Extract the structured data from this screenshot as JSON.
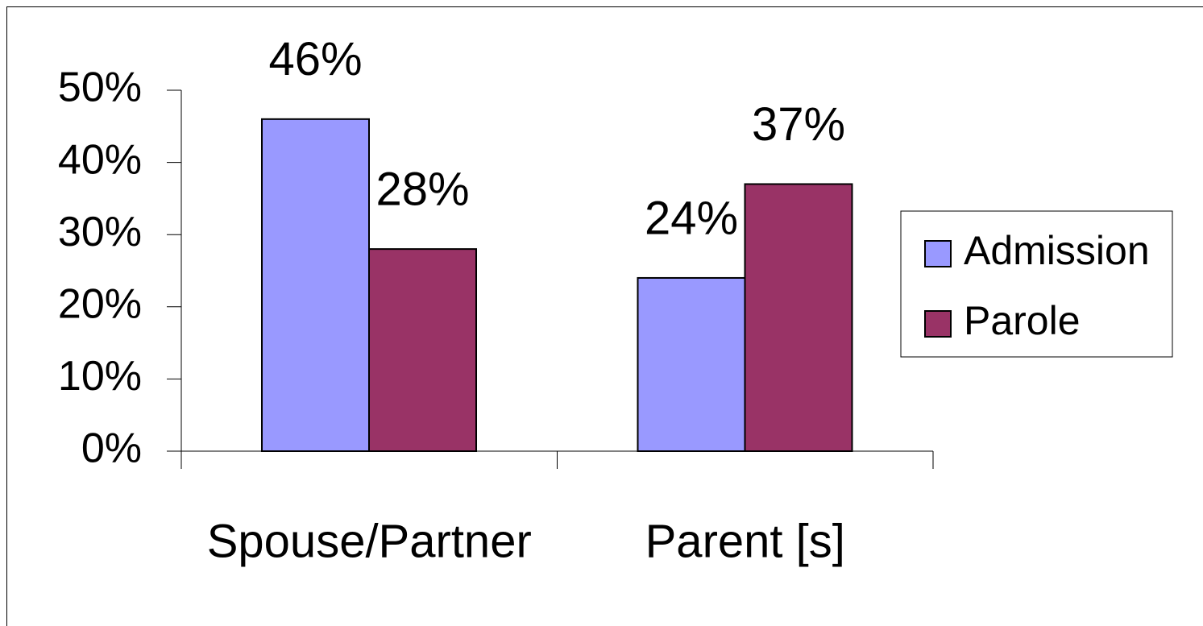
{
  "chart_data": {
    "type": "bar",
    "categories": [
      "Spouse/Partner",
      "Parent [s]"
    ],
    "series": [
      {
        "name": "Admission",
        "color": "#9999ff",
        "values": [
          46,
          24
        ],
        "value_labels": [
          "46%",
          "24%"
        ]
      },
      {
        "name": "Parole",
        "color": "#993366",
        "values": [
          28,
          37
        ],
        "value_labels": [
          "28%",
          "37%"
        ]
      }
    ],
    "ylim": [
      0,
      50
    ],
    "yticks": [
      {
        "value": 0,
        "label": "0%"
      },
      {
        "value": 10,
        "label": "10%"
      },
      {
        "value": 20,
        "label": "20%"
      },
      {
        "value": 30,
        "label": "30%"
      },
      {
        "value": 40,
        "label": "40%"
      },
      {
        "value": 50,
        "label": "50%"
      }
    ],
    "grid": false,
    "legend": "right"
  }
}
